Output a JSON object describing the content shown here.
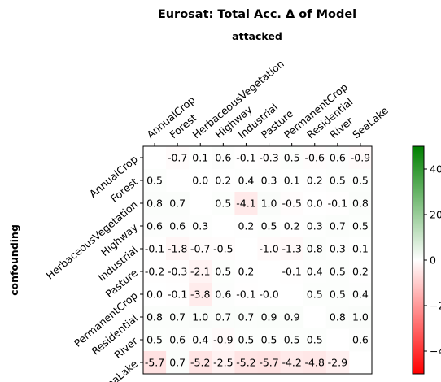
{
  "chart_data": {
    "type": "heatmap",
    "title": "Eurosat: Total Acc. Δ of Model",
    "xlabel": "attacked",
    "ylabel": "confounding",
    "x_categories": [
      "AnnualCrop",
      "Forest",
      "HerbaceousVegetation",
      "Highway",
      "Industrial",
      "Pasture",
      "PermanentCrop",
      "Residential",
      "River",
      "SeaLake"
    ],
    "y_categories": [
      "AnnualCrop",
      "Forest",
      "HerbaceousVegetation",
      "Highway",
      "Industrial",
      "Pasture",
      "PermanentCrop",
      "Residential",
      "River",
      "SeaLake"
    ],
    "values": [
      [
        null,
        -0.7,
        0.1,
        0.6,
        -0.1,
        -0.3,
        0.5,
        -0.6,
        0.6,
        -0.9
      ],
      [
        0.5,
        null,
        0.0,
        0.2,
        0.4,
        0.3,
        0.1,
        0.2,
        0.5,
        0.5
      ],
      [
        0.8,
        0.7,
        null,
        0.5,
        -4.1,
        1.0,
        -0.5,
        0.0,
        -0.1,
        0.8
      ],
      [
        0.6,
        0.6,
        0.3,
        null,
        0.2,
        0.5,
        0.2,
        0.3,
        0.7,
        0.5
      ],
      [
        -0.1,
        -1.8,
        -0.7,
        -0.5,
        null,
        -1.0,
        -1.3,
        0.8,
        0.3,
        0.1
      ],
      [
        -0.2,
        -0.3,
        -2.1,
        0.5,
        0.2,
        null,
        -0.1,
        0.4,
        0.5,
        0.2
      ],
      [
        0.0,
        -0.1,
        -3.8,
        0.6,
        -0.1,
        -0.0,
        null,
        0.5,
        0.5,
        0.4
      ],
      [
        0.8,
        0.7,
        1.0,
        0.7,
        0.7,
        0.9,
        0.9,
        null,
        0.8,
        1.0
      ],
      [
        0.5,
        0.6,
        0.4,
        -0.9,
        0.5,
        0.5,
        0.5,
        0.5,
        null,
        0.6
      ],
      [
        -5.7,
        0.7,
        -5.2,
        -2.5,
        -5.2,
        -5.7,
        -4.2,
        -4.8,
        -2.9,
        null
      ]
    ],
    "value_labels": [
      [
        "",
        "-0.7",
        "0.1",
        "0.6",
        "-0.1",
        "-0.3",
        "0.5",
        "-0.6",
        "0.6",
        "-0.9"
      ],
      [
        "0.5",
        "",
        "0.0",
        "0.2",
        "0.4",
        "0.3",
        "0.1",
        "0.2",
        "0.5",
        "0.5"
      ],
      [
        "0.8",
        "0.7",
        "",
        "0.5",
        "-4.1",
        "1.0",
        "-0.5",
        "0.0",
        "-0.1",
        "0.8"
      ],
      [
        "0.6",
        "0.6",
        "0.3",
        "",
        "0.2",
        "0.5",
        "0.2",
        "0.3",
        "0.7",
        "0.5"
      ],
      [
        "-0.1",
        "-1.8",
        "-0.7",
        "-0.5",
        "",
        "-1.0",
        "-1.3",
        "0.8",
        "0.3",
        "0.1"
      ],
      [
        "-0.2",
        "-0.3",
        "-2.1",
        "0.5",
        "0.2",
        "",
        "-0.1",
        "0.4",
        "0.5",
        "0.2"
      ],
      [
        "0.0",
        "-0.1",
        "-3.8",
        "0.6",
        "-0.1",
        "-0.0",
        "",
        "0.5",
        "0.5",
        "0.4"
      ],
      [
        "0.8",
        "0.7",
        "1.0",
        "0.7",
        "0.7",
        "0.9",
        "0.9",
        "",
        "0.8",
        "1.0"
      ],
      [
        "0.5",
        "0.6",
        "0.4",
        "-0.9",
        "0.5",
        "0.5",
        "0.5",
        "0.5",
        "",
        "0.6"
      ],
      [
        "-5.7",
        "0.7",
        "-5.2",
        "-2.5",
        "-5.2",
        "-5.7",
        "-4.2",
        "-4.8",
        "-2.9",
        ""
      ]
    ],
    "colorbar": {
      "range": [
        -50,
        50
      ],
      "ticks": [
        -40,
        -20,
        0,
        20,
        40
      ],
      "tick_labels": [
        "−40",
        "−20",
        "0",
        "20",
        "40"
      ],
      "colors": {
        "low": "#ff0000",
        "mid": "#ffffff",
        "high": "#008000"
      }
    },
    "x_tick_position": "top",
    "grid": false
  }
}
